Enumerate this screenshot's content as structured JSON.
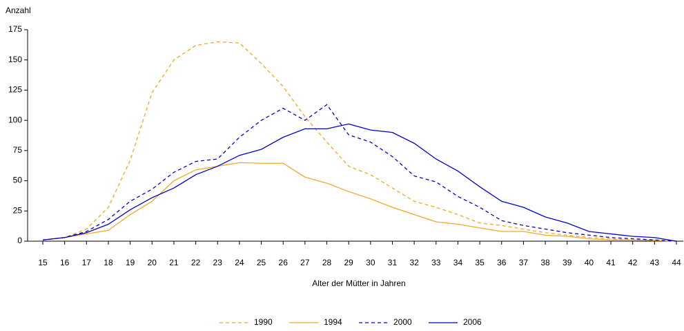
{
  "chart_data": {
    "type": "line",
    "y_label": "Anzahl",
    "x_label": "Alter der Mütter in Jahren",
    "x": [
      15,
      16,
      17,
      18,
      19,
      20,
      21,
      22,
      23,
      24,
      25,
      26,
      27,
      28,
      29,
      30,
      31,
      32,
      33,
      34,
      35,
      36,
      37,
      38,
      39,
      40,
      41,
      42,
      43,
      44
    ],
    "xlim": [
      15,
      44
    ],
    "xticks": [
      15,
      16,
      17,
      18,
      19,
      20,
      21,
      22,
      23,
      24,
      25,
      26,
      27,
      28,
      29,
      30,
      31,
      32,
      33,
      34,
      35,
      36,
      37,
      38,
      39,
      40,
      41,
      42,
      43,
      44
    ],
    "ylim": [
      0,
      175
    ],
    "yticks": [
      0,
      25,
      50,
      75,
      100,
      125,
      150,
      175
    ],
    "legend": "bottom",
    "series": [
      {
        "name": "1990",
        "color": "#f5a623",
        "dashed": true,
        "values": [
          1,
          3,
          10,
          28,
          67,
          123,
          150,
          162,
          165,
          164,
          147,
          128,
          103,
          82,
          62,
          55,
          44,
          33,
          28,
          22,
          15,
          13,
          10,
          7,
          5,
          3,
          2,
          1,
          1,
          0
        ]
      },
      {
        "name": "1994",
        "color": "#f5a623",
        "dashed": false,
        "values": [
          1,
          3,
          6,
          9,
          22,
          33,
          50,
          59,
          62,
          65,
          64.5,
          64.5,
          53,
          48,
          41,
          35,
          28,
          22,
          16,
          14,
          11,
          8,
          8,
          5,
          4,
          2,
          1,
          1,
          0.5,
          0
        ]
      },
      {
        "name": "2000",
        "color": "#0000cc",
        "dashed": true,
        "values": [
          1,
          3,
          8,
          18,
          33,
          43,
          57,
          66,
          68,
          86,
          100,
          110,
          100,
          113,
          88,
          82,
          70,
          54,
          49,
          37,
          28,
          17,
          13,
          10,
          7,
          5,
          3,
          2,
          1,
          0
        ]
      },
      {
        "name": "2006",
        "color": "#0000cc",
        "dashed": false,
        "values": [
          1,
          3,
          7,
          14,
          26,
          36,
          44,
          55,
          62,
          71,
          76,
          86,
          93,
          93,
          97,
          92,
          90,
          81,
          68,
          58,
          45,
          33,
          28,
          20,
          15,
          8,
          6,
          4,
          3,
          0
        ]
      }
    ]
  }
}
